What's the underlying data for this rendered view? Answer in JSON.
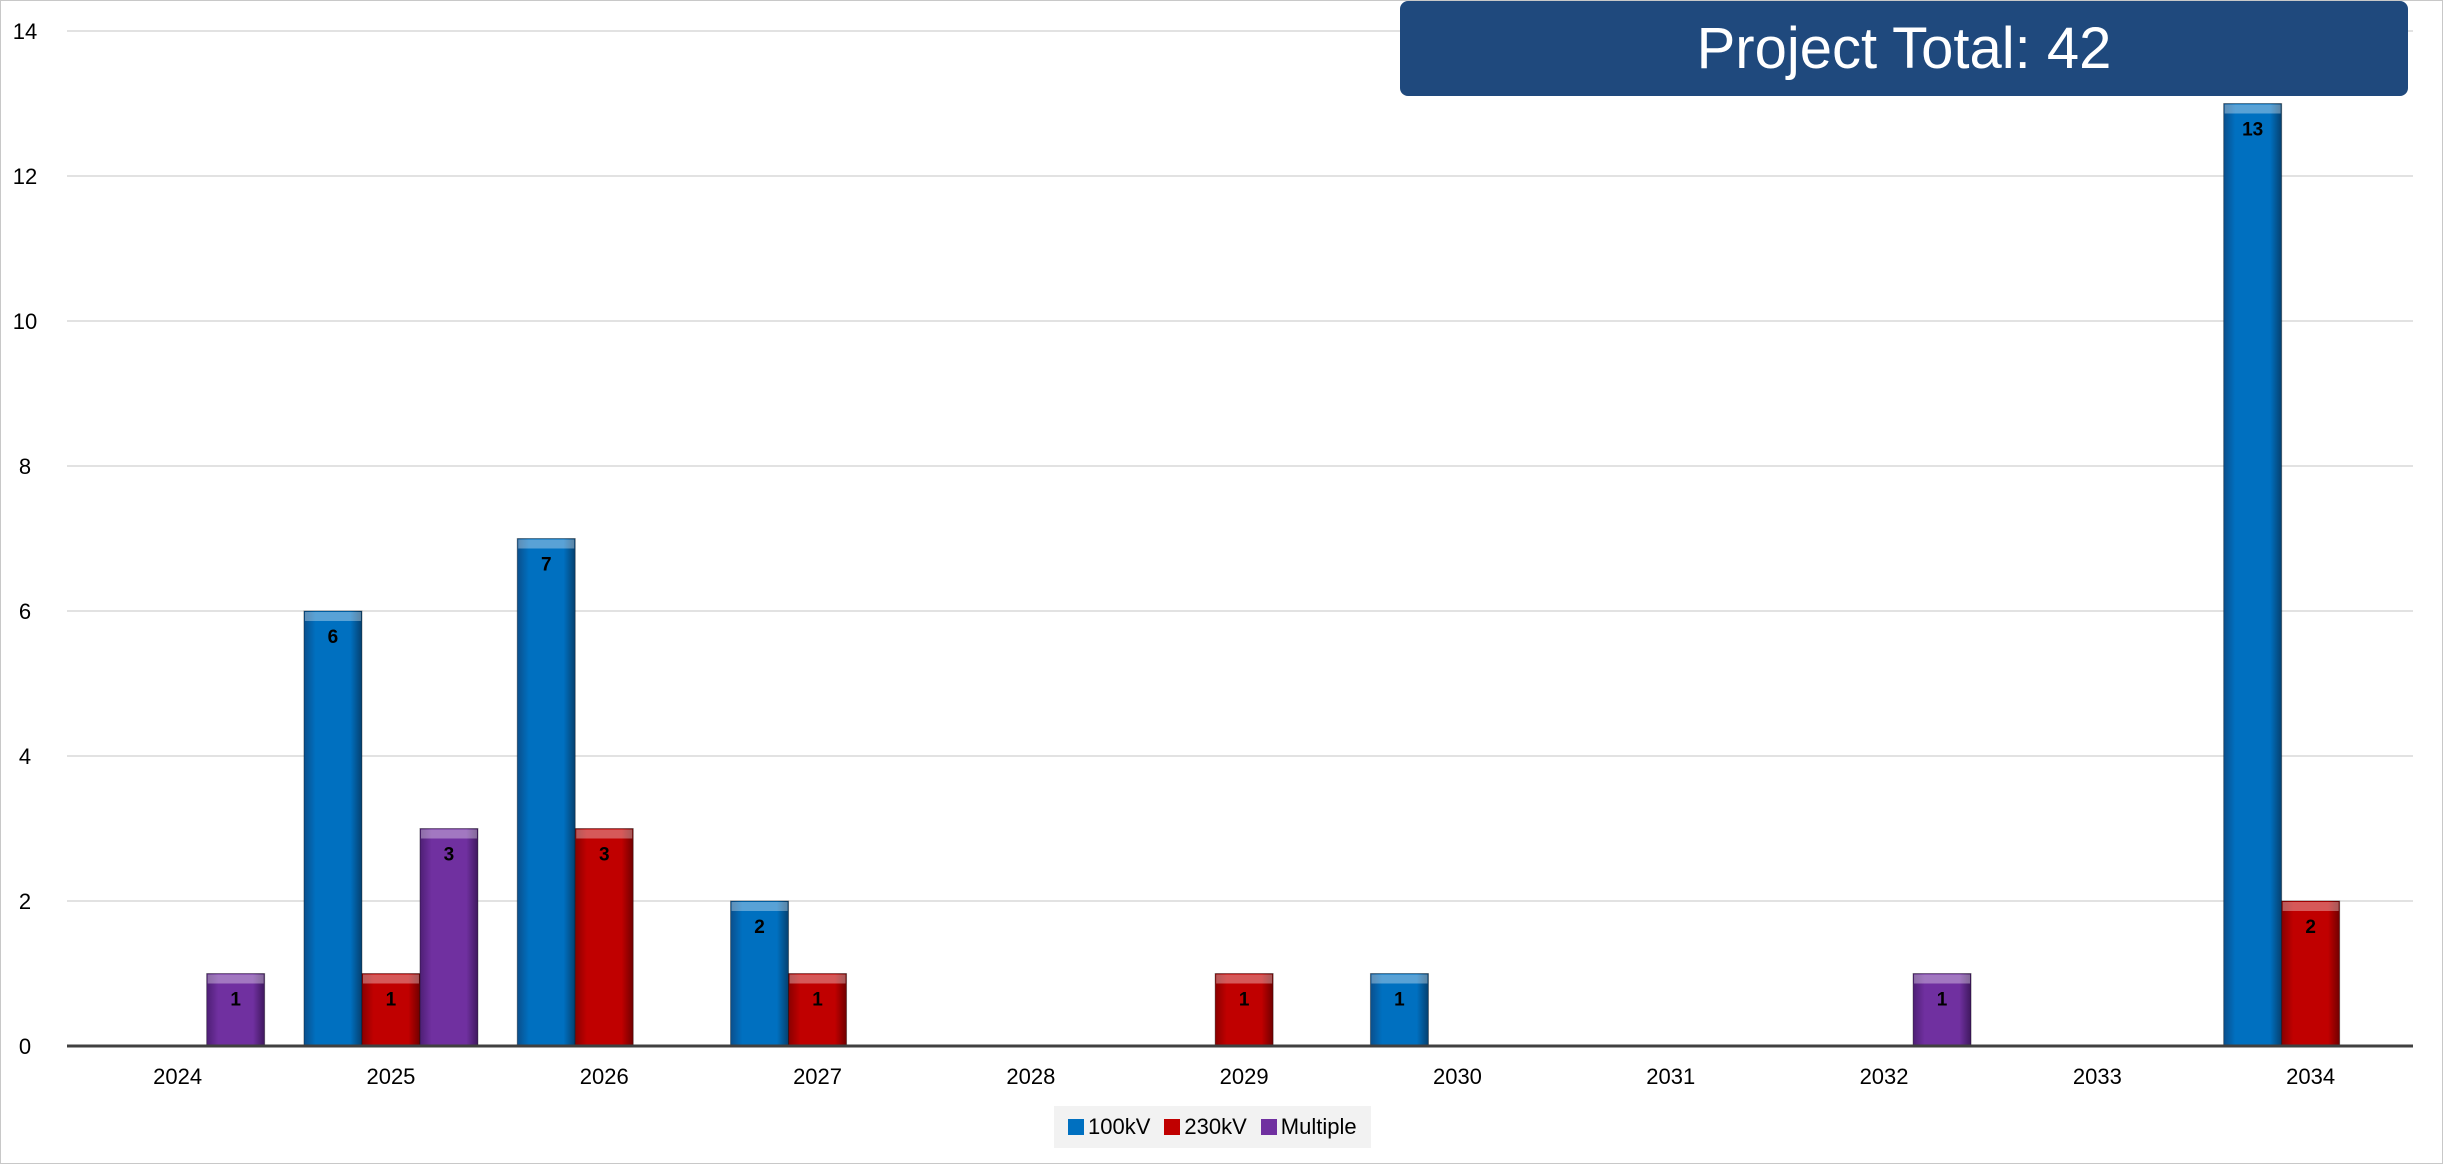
{
  "banner": {
    "text": "Project Total: 42",
    "color": "#1f497d"
  },
  "chart_data": {
    "type": "bar",
    "categories": [
      "2024",
      "2025",
      "2026",
      "2027",
      "2028",
      "2029",
      "2030",
      "2031",
      "2032",
      "2033",
      "2034"
    ],
    "series": [
      {
        "name": "100kV",
        "color": "#0070c0",
        "values": [
          0,
          6,
          7,
          2,
          0,
          0,
          1,
          0,
          0,
          0,
          13
        ]
      },
      {
        "name": "230kV",
        "color": "#c00000",
        "values": [
          0,
          1,
          3,
          1,
          0,
          1,
          0,
          0,
          0,
          0,
          2
        ]
      },
      {
        "name": "Multiple",
        "color": "#7030a0",
        "values": [
          1,
          3,
          0,
          0,
          0,
          0,
          0,
          0,
          1,
          0,
          0
        ]
      }
    ],
    "ylim": [
      0,
      14
    ],
    "yticks": [
      0,
      2,
      4,
      6,
      8,
      10,
      12,
      14
    ],
    "grid": true,
    "data_labels": true,
    "legend_position": "bottom",
    "xlabel": "",
    "ylabel": ""
  }
}
